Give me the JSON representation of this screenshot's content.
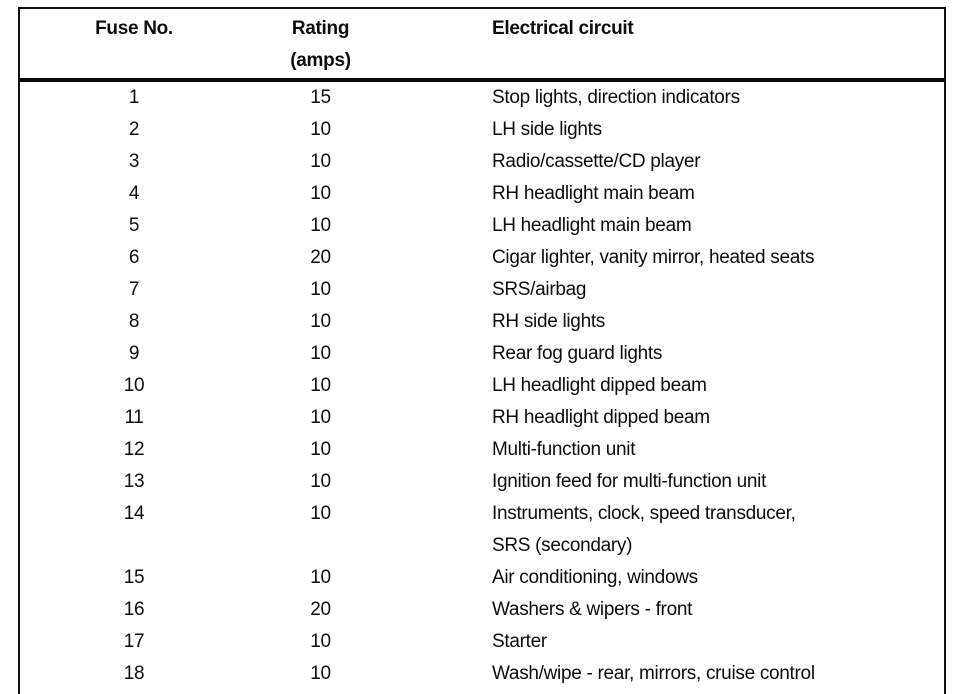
{
  "table": {
    "header": {
      "fuse_no": "Fuse No.",
      "rating": "Rating\n(amps)",
      "electrical_circuit": "Electrical circuit"
    },
    "rows": [
      {
        "fuse": "1",
        "rating": "15",
        "circuit": "Stop lights, direction indicators"
      },
      {
        "fuse": "2",
        "rating": "10",
        "circuit": "LH side lights"
      },
      {
        "fuse": "3",
        "rating": "10",
        "circuit": "Radio/cassette/CD player"
      },
      {
        "fuse": "4",
        "rating": "10",
        "circuit": "RH headlight main beam"
      },
      {
        "fuse": "5",
        "rating": "10",
        "circuit": "LH headlight main beam"
      },
      {
        "fuse": "6",
        "rating": "20",
        "circuit": "Cigar lighter, vanity mirror, heated seats"
      },
      {
        "fuse": "7",
        "rating": "10",
        "circuit": "SRS/airbag"
      },
      {
        "fuse": "8",
        "rating": "10",
        "circuit": "RH side lights"
      },
      {
        "fuse": "9",
        "rating": "10",
        "circuit": "Rear fog guard lights"
      },
      {
        "fuse": "10",
        "rating": "10",
        "circuit": "LH headlight dipped beam"
      },
      {
        "fuse": "11",
        "rating": "10",
        "circuit": "RH headlight dipped beam"
      },
      {
        "fuse": "12",
        "rating": "10",
        "circuit": "Multi-function unit"
      },
      {
        "fuse": "13",
        "rating": "10",
        "circuit": "Ignition feed for multi-function unit"
      },
      {
        "fuse": "14",
        "rating": "10",
        "circuit": "Instruments, clock, speed transducer,\nSRS (secondary)"
      },
      {
        "fuse": "15",
        "rating": "10",
        "circuit": "Air conditioning, windows"
      },
      {
        "fuse": "16",
        "rating": "20",
        "circuit": "Washers & wipers - front"
      },
      {
        "fuse": "17",
        "rating": "10",
        "circuit": "Starter"
      },
      {
        "fuse": "18",
        "rating": "10",
        "circuit": "Wash/wipe - rear, mirrors, cruise control"
      }
    ],
    "colors": {
      "text": "#0d0d0d",
      "border": "#111111",
      "background": "#ffffff"
    }
  }
}
